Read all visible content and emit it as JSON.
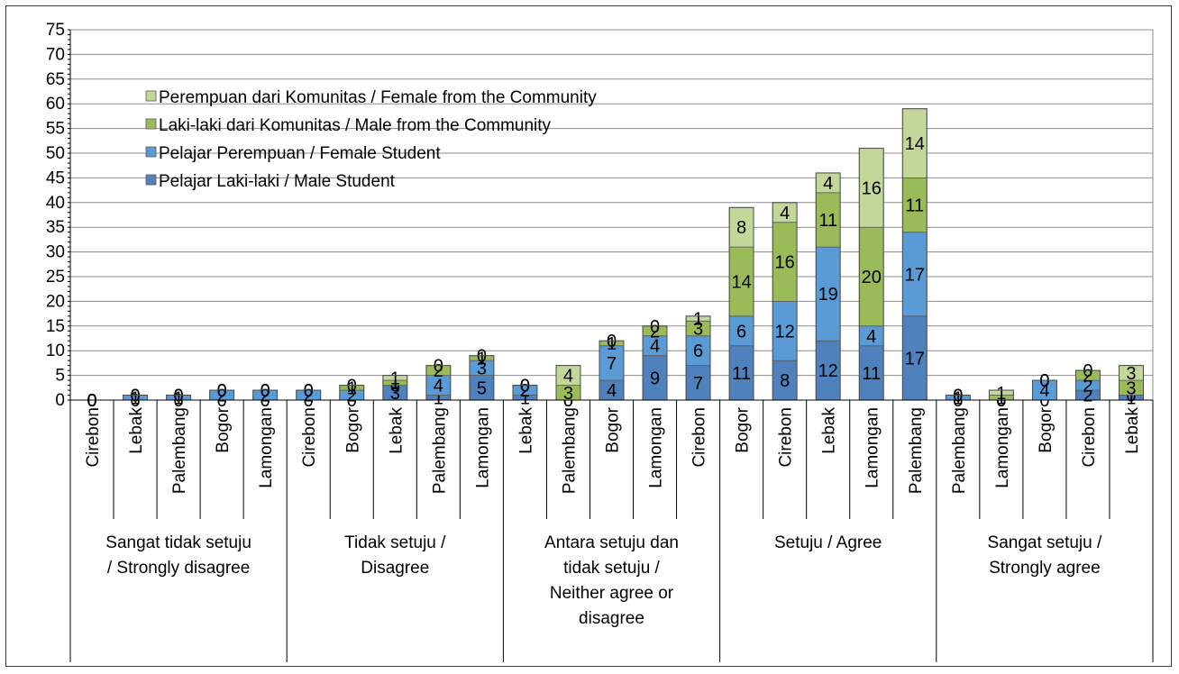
{
  "chart_data": {
    "type": "bar",
    "stacked": true,
    "ylim": [
      0,
      75
    ],
    "yticks": [
      0,
      5,
      10,
      15,
      20,
      25,
      30,
      35,
      40,
      45,
      50,
      55,
      60,
      65,
      70,
      75
    ],
    "grid": true,
    "legend_position": "top-left",
    "groups": [
      {
        "label": [
          "Sangat tidak setuju",
          "/ Strongly disagree"
        ],
        "categories": [
          "Cirebon",
          "Lebak",
          "Palembang",
          "Bogor",
          "Lamongan"
        ]
      },
      {
        "label": [
          "Tidak setuju /",
          "Disagree"
        ],
        "categories": [
          "Cirebon",
          "Bogor",
          "Lebak",
          "Palembang",
          "Lamongan"
        ]
      },
      {
        "label": [
          "Antara setuju dan",
          "tidak setuju /",
          "Neither agree or",
          "disagree"
        ],
        "categories": [
          "Lebak",
          "Palembang",
          "Bogor",
          "Lamongan",
          "Cirebon"
        ]
      },
      {
        "label": [
          "Setuju / Agree"
        ],
        "categories": [
          "Bogor",
          "Cirebon",
          "Lebak",
          "Lamongan",
          "Palembang"
        ]
      },
      {
        "label": [
          "Sangat setuju /",
          "Strongly agree"
        ],
        "categories": [
          "Palembang",
          "Lamongan",
          "Bogor",
          "Cirebon",
          "Lebak"
        ]
      }
    ],
    "series": [
      {
        "name": "Pelajar Laki-laki / Male Student",
        "color": "#4f81bd",
        "values": [
          0,
          0,
          0,
          0,
          0,
          0,
          0,
          3,
          1,
          5,
          1,
          0,
          4,
          9,
          7,
          11,
          8,
          12,
          11,
          17,
          0,
          0,
          0,
          2,
          1
        ]
      },
      {
        "name": "Pelajar Perempuan / Female Student",
        "color": "#5b9bd5",
        "values": [
          0,
          1,
          1,
          2,
          2,
          2,
          2,
          0,
          4,
          3,
          2,
          0,
          7,
          4,
          6,
          6,
          12,
          19,
          4,
          17,
          1,
          0,
          4,
          2,
          0
        ]
      },
      {
        "name": "Laki-laki dari Komunitas / Male from the Community",
        "color": "#9bbb59",
        "values": [
          0,
          0,
          0,
          0,
          0,
          0,
          1,
          1,
          2,
          1,
          0,
          3,
          1,
          2,
          3,
          14,
          16,
          11,
          20,
          11,
          0,
          1,
          0,
          2,
          3
        ]
      },
      {
        "name": "Perempuan dari Komunitas / Female from the Community",
        "color": "#c4d79b",
        "values": [
          0,
          0,
          0,
          0,
          0,
          0,
          0,
          1,
          0,
          0,
          0,
          4,
          0,
          0,
          1,
          8,
          4,
          4,
          16,
          14,
          0,
          1,
          0,
          0,
          3
        ]
      }
    ]
  }
}
